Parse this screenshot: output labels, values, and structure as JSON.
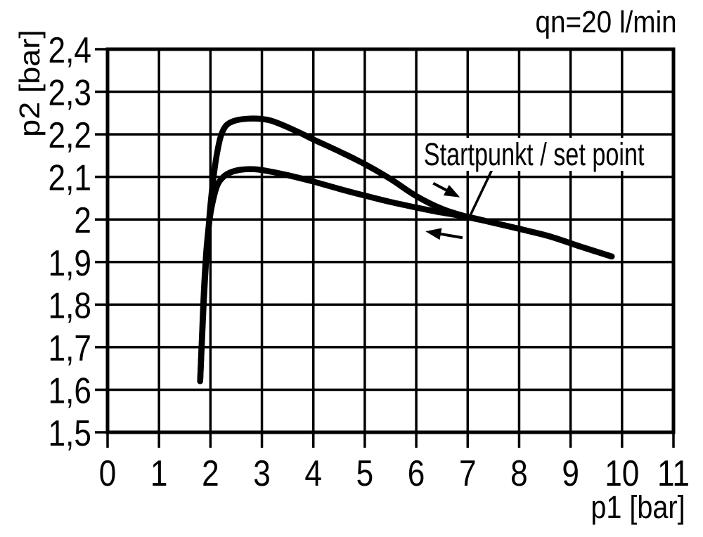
{
  "chart_data": {
    "type": "line",
    "title": "qn=20 l/min",
    "xlabel": "p1 [bar]",
    "ylabel": "p2 [bar]",
    "xlim": [
      0,
      11
    ],
    "ylim": [
      1.5,
      2.4
    ],
    "grid": true,
    "legend": "none",
    "x_ticks": {
      "values": [
        0,
        1,
        2,
        3,
        4,
        5,
        6,
        7,
        8,
        9,
        10,
        11
      ],
      "labels": [
        "0",
        "1",
        "2",
        "3",
        "4",
        "5",
        "6",
        "7",
        "8",
        "9",
        "10",
        "11"
      ]
    },
    "y_ticks": {
      "values": [
        1.5,
        1.6,
        1.7,
        1.8,
        1.9,
        2.0,
        2.1,
        2.2,
        2.3,
        2.4
      ],
      "labels": [
        "1,5",
        "1,6",
        "1,7",
        "1,8",
        "1,9",
        "2",
        "2,1",
        "2,2",
        "2,3",
        "2,4"
      ]
    },
    "series": [
      {
        "name": "upper-branch-increasing-p1",
        "direction": "right",
        "points": [
          [
            1.8,
            1.62
          ],
          [
            1.84,
            1.73
          ],
          [
            1.88,
            1.83
          ],
          [
            1.93,
            1.93
          ],
          [
            1.99,
            2.02
          ],
          [
            2.05,
            2.09
          ],
          [
            2.12,
            2.15
          ],
          [
            2.2,
            2.195
          ],
          [
            2.3,
            2.22
          ],
          [
            2.45,
            2.231
          ],
          [
            2.65,
            2.236
          ],
          [
            2.9,
            2.237
          ],
          [
            3.15,
            2.233
          ],
          [
            3.4,
            2.222
          ],
          [
            3.75,
            2.203
          ],
          [
            4.0,
            2.188
          ],
          [
            4.5,
            2.16
          ],
          [
            5.0,
            2.13
          ],
          [
            5.5,
            2.095
          ],
          [
            6.0,
            2.055
          ],
          [
            6.5,
            2.025
          ],
          [
            7.0,
            2.006
          ],
          [
            7.4,
            1.995
          ],
          [
            8.0,
            1.978
          ],
          [
            8.6,
            1.96
          ],
          [
            9.2,
            1.936
          ],
          [
            9.8,
            1.913
          ]
        ]
      },
      {
        "name": "lower-branch-decreasing-p1",
        "direction": "left",
        "points": [
          [
            1.8,
            1.62
          ],
          [
            1.84,
            1.74
          ],
          [
            1.88,
            1.85
          ],
          [
            1.93,
            1.94
          ],
          [
            1.99,
            2.005
          ],
          [
            2.06,
            2.05
          ],
          [
            2.14,
            2.082
          ],
          [
            2.25,
            2.1
          ],
          [
            2.4,
            2.111
          ],
          [
            2.6,
            2.117
          ],
          [
            2.85,
            2.118
          ],
          [
            3.1,
            2.114
          ],
          [
            3.5,
            2.104
          ],
          [
            4.0,
            2.089
          ],
          [
            4.5,
            2.072
          ],
          [
            5.0,
            2.056
          ],
          [
            5.5,
            2.041
          ],
          [
            6.0,
            2.028
          ],
          [
            6.5,
            2.016
          ],
          [
            7.0,
            2.006
          ],
          [
            7.4,
            1.995
          ],
          [
            8.0,
            1.978
          ],
          [
            8.6,
            1.96
          ],
          [
            9.2,
            1.936
          ],
          [
            9.8,
            1.913
          ]
        ]
      }
    ],
    "annotation": {
      "text": "Startpunkt / set point",
      "point": [
        7.03,
        2.005
      ],
      "leader_from": [
        7.47,
        2.116
      ],
      "leader_to": [
        7.04,
        2.007
      ]
    },
    "arrows": [
      {
        "name": "flow-direction-arrow-right",
        "from": [
          6.33,
          2.085
        ],
        "to": [
          6.85,
          2.052
        ]
      },
      {
        "name": "flow-direction-arrow-left",
        "from": [
          6.9,
          1.957
        ],
        "to": [
          6.18,
          1.972
        ]
      }
    ],
    "colors": {
      "line": "#000000",
      "background": "#ffffff"
    }
  }
}
